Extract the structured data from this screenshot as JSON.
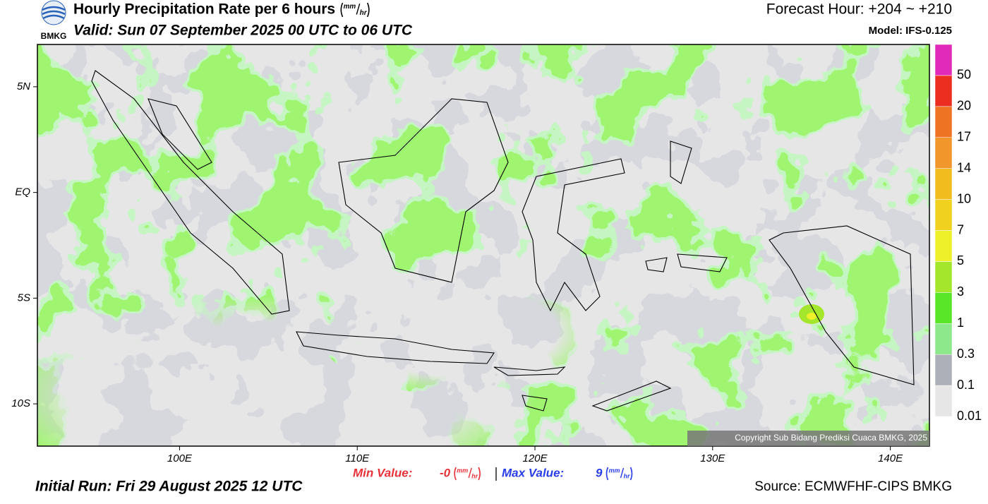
{
  "header": {
    "logo_text": "BMKG",
    "title": "Hourly Precipitation Rate per 6 hours",
    "unit_numerator": "mm",
    "unit_denominator": "hr",
    "valid": "Valid: Sun 07 September 2025 00 UTC to 06 UTC",
    "forecast_hour": "Forecast Hour: +204 ~ +210",
    "model": "Model: IFS-0.125"
  },
  "map": {
    "lon_range": [
      92,
      142.2
    ],
    "lat_range": [
      -12,
      7
    ],
    "xticks": [
      {
        "value": 100,
        "label": "100E"
      },
      {
        "value": 110,
        "label": "110E"
      },
      {
        "value": 120,
        "label": "120E"
      },
      {
        "value": 130,
        "label": "130E"
      },
      {
        "value": 140,
        "label": "140E"
      }
    ],
    "yticks": [
      {
        "value": 5,
        "label": "5N"
      },
      {
        "value": 0,
        "label": "EQ"
      },
      {
        "value": -5,
        "label": "5S"
      },
      {
        "value": -10,
        "label": "10S"
      }
    ],
    "copyright": "Copyright Sub Bidang Prediksi Cuaca BMKG, 2025"
  },
  "legend": {
    "levels": [
      0.01,
      0.1,
      0.3,
      1,
      3,
      5,
      7,
      10,
      14,
      17,
      20,
      50
    ],
    "colors": [
      "#e6e6e6",
      "#aeb0b9",
      "#8ce88a",
      "#5ae628",
      "#a4e62c",
      "#eef02a",
      "#f0d21e",
      "#f0bc1e",
      "#f0962a",
      "#ee7424",
      "#ec2e20",
      "#e22ab8"
    ]
  },
  "footer": {
    "min_label": "Min Value:",
    "min_value": "-0",
    "max_label": "Max Value:",
    "max_value": "9",
    "initial_run": "Initial Run: Fri 29 August 2025 12 UTC",
    "source": "Source: ECMWFHF-CIPS BMKG"
  }
}
